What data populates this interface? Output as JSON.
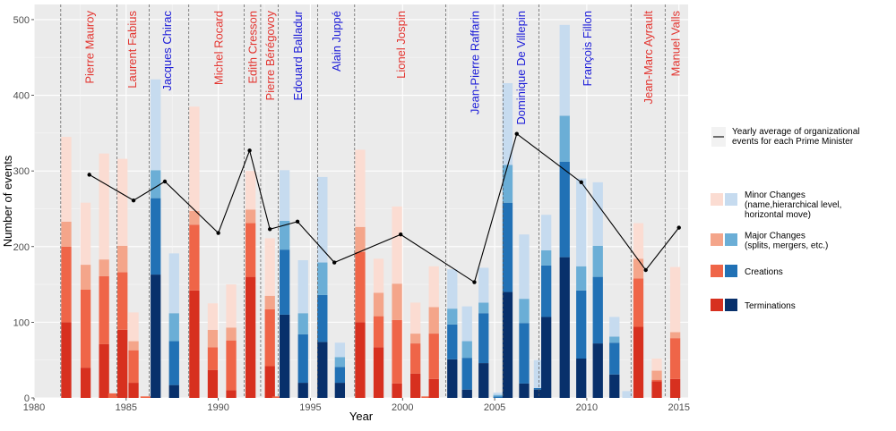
{
  "colors": {
    "left_minor": "#FBDCD2",
    "left_major": "#F4A58A",
    "left_creation": "#EF6548",
    "left_termination": "#D7301F",
    "right_minor": "#C6DBEF",
    "right_major": "#6BAED6",
    "right_creation": "#2171B5",
    "right_termination": "#08306B",
    "pm_red": "#E3342F",
    "pm_blue": "#1B1BD8"
  },
  "chart_data": {
    "type": "bar",
    "stacked": true,
    "xlabel": "Year",
    "ylabel": "Number of events",
    "xlim": [
      1980,
      2015.5
    ],
    "ylim": [
      0,
      520
    ],
    "xticks": [
      1980,
      1985,
      1990,
      1995,
      2000,
      2005,
      2010,
      2015
    ],
    "yticks": [
      0,
      100,
      200,
      300,
      400,
      500
    ],
    "grid": true,
    "stack_order": [
      "Terminations",
      "Creations",
      "Major Changes",
      "Minor Changes"
    ],
    "bars": [
      {
        "x": 1981.75,
        "side": "left",
        "values": [
          100,
          100,
          33,
          112
        ]
      },
      {
        "x": 1982.8,
        "side": "left",
        "values": [
          40,
          103,
          33,
          82
        ]
      },
      {
        "x": 1983.8,
        "side": "left",
        "values": [
          71,
          90,
          22,
          140
        ]
      },
      {
        "x": 1984.3,
        "side": "left",
        "values": [
          0,
          6,
          0,
          0
        ]
      },
      {
        "x": 1984.8,
        "side": "left",
        "values": [
          90,
          76,
          35,
          115
        ]
      },
      {
        "x": 1985.4,
        "side": "left",
        "values": [
          20,
          43,
          12,
          38
        ]
      },
      {
        "x": 1986.05,
        "side": "left",
        "values": [
          0,
          2,
          0,
          0
        ]
      },
      {
        "x": 1986.6,
        "side": "right",
        "values": [
          163,
          101,
          37,
          120
        ]
      },
      {
        "x": 1987.6,
        "side": "right",
        "values": [
          17,
          58,
          37,
          79
        ]
      },
      {
        "x": 1988.7,
        "side": "left",
        "values": [
          142,
          87,
          18,
          138
        ]
      },
      {
        "x": 1989.7,
        "side": "left",
        "values": [
          37,
          30,
          23,
          35
        ]
      },
      {
        "x": 1990.7,
        "side": "left",
        "values": [
          10,
          66,
          17,
          57
        ]
      },
      {
        "x": 1991.75,
        "side": "left",
        "values": [
          160,
          71,
          18,
          51
        ]
      },
      {
        "x": 1992.8,
        "side": "left",
        "values": [
          42,
          75,
          18,
          76
        ]
      },
      {
        "x": 1993.2,
        "side": "left",
        "values": [
          0,
          2,
          0,
          0
        ]
      },
      {
        "x": 1993.6,
        "side": "right",
        "values": [
          110,
          86,
          38,
          67
        ]
      },
      {
        "x": 1994.6,
        "side": "right",
        "values": [
          20,
          64,
          28,
          70
        ]
      },
      {
        "x": 1995.65,
        "side": "right",
        "values": [
          74,
          62,
          43,
          113
        ]
      },
      {
        "x": 1996.6,
        "side": "right",
        "values": [
          20,
          21,
          13,
          19
        ]
      },
      {
        "x": 1997.7,
        "side": "left",
        "values": [
          100,
          93,
          33,
          102
        ]
      },
      {
        "x": 1998.7,
        "side": "left",
        "values": [
          67,
          41,
          31,
          45
        ]
      },
      {
        "x": 1999.7,
        "side": "left",
        "values": [
          19,
          84,
          48,
          102
        ]
      },
      {
        "x": 2000.7,
        "side": "left",
        "values": [
          32,
          40,
          13,
          41
        ]
      },
      {
        "x": 2001.3,
        "side": "left",
        "values": [
          0,
          2,
          0,
          0
        ]
      },
      {
        "x": 2001.7,
        "side": "left",
        "values": [
          25,
          60,
          35,
          54
        ]
      },
      {
        "x": 2002.7,
        "side": "right",
        "values": [
          51,
          46,
          21,
          52
        ]
      },
      {
        "x": 2003.5,
        "side": "right",
        "values": [
          11,
          42,
          22,
          46
        ]
      },
      {
        "x": 2004.4,
        "side": "right",
        "values": [
          46,
          66,
          14,
          46
        ]
      },
      {
        "x": 2005.2,
        "side": "right",
        "values": [
          0,
          2,
          2,
          3
        ]
      },
      {
        "x": 2005.7,
        "side": "right",
        "values": [
          140,
          118,
          50,
          108
        ]
      },
      {
        "x": 2006.6,
        "side": "right",
        "values": [
          19,
          80,
          32,
          85
        ]
      },
      {
        "x": 2007.4,
        "side": "right",
        "values": [
          11,
          2,
          0,
          37
        ]
      },
      {
        "x": 2007.8,
        "side": "right",
        "values": [
          107,
          68,
          20,
          47
        ]
      },
      {
        "x": 2008.8,
        "side": "right",
        "values": [
          186,
          126,
          61,
          120
        ]
      },
      {
        "x": 2009.7,
        "side": "right",
        "values": [
          52,
          90,
          32,
          116
        ]
      },
      {
        "x": 2010.6,
        "side": "right",
        "values": [
          72,
          88,
          41,
          84
        ]
      },
      {
        "x": 2011.5,
        "side": "right",
        "values": [
          31,
          42,
          8,
          26
        ]
      },
      {
        "x": 2012.2,
        "side": "right",
        "values": [
          0,
          0,
          0,
          9
        ]
      },
      {
        "x": 2012.8,
        "side": "left",
        "values": [
          94,
          64,
          26,
          47
        ]
      },
      {
        "x": 2013.8,
        "side": "left",
        "values": [
          22,
          2,
          12,
          16
        ]
      },
      {
        "x": 2014.8,
        "side": "left",
        "values": [
          25,
          54,
          8,
          86
        ]
      }
    ],
    "average_line": {
      "name": "Yearly average of organizational events for each Prime Minister",
      "points": [
        {
          "x": 1983,
          "y": 295
        },
        {
          "x": 1985.4,
          "y": 261
        },
        {
          "x": 1987.1,
          "y": 286
        },
        {
          "x": 1990,
          "y": 218
        },
        {
          "x": 1991.7,
          "y": 327
        },
        {
          "x": 1992.8,
          "y": 223
        },
        {
          "x": 1994.3,
          "y": 233
        },
        {
          "x": 1996.3,
          "y": 179
        },
        {
          "x": 1999.9,
          "y": 216
        },
        {
          "x": 2003.9,
          "y": 153
        },
        {
          "x": 2006.2,
          "y": 349
        },
        {
          "x": 2009.7,
          "y": 285
        },
        {
          "x": 2013.2,
          "y": 169
        },
        {
          "x": 2015,
          "y": 225
        }
      ]
    },
    "boundaries": [
      1981.45,
      1984.5,
      1986.25,
      1988.4,
      1991.4,
      1992.3,
      1993.25,
      1995.4,
      1997.4,
      2002.35,
      2005.45,
      2007.4,
      2012.4,
      2014.25
    ],
    "prime_ministers": [
      {
        "name": "Pierre Mauroy",
        "x": 1983.0,
        "color": "red"
      },
      {
        "name": "Laurent Fabius",
        "x": 1985.3,
        "color": "red"
      },
      {
        "name": "Jacques Chirac",
        "x": 1987.2,
        "color": "blue"
      },
      {
        "name": "Michel Rocard",
        "x": 1990.0,
        "color": "red"
      },
      {
        "name": "Edith Cresson",
        "x": 1991.85,
        "color": "red"
      },
      {
        "name": "Pierre Bérégovoy",
        "x": 1992.8,
        "color": "red"
      },
      {
        "name": "Edouard Balladur",
        "x": 1994.3,
        "color": "blue"
      },
      {
        "name": "Alain Juppé",
        "x": 1996.4,
        "color": "blue"
      },
      {
        "name": "Lionel Jospin",
        "x": 1999.9,
        "color": "red"
      },
      {
        "name": "Jean-Pierre Raffarin",
        "x": 2003.9,
        "color": "blue"
      },
      {
        "name": "Dominique De Villepin",
        "x": 2006.4,
        "color": "blue"
      },
      {
        "name": "François Fillon",
        "x": 2010.0,
        "color": "blue"
      },
      {
        "name": "Jean-Marc Ayrault",
        "x": 2013.3,
        "color": "red"
      },
      {
        "name": "Manuel Valls",
        "x": 2014.8,
        "color": "red"
      }
    ],
    "legend": {
      "line_label": [
        "Yearly average of organizational",
        "events for each Prime Minister"
      ],
      "items": [
        {
          "key": "minor",
          "label": [
            "Minor Changes",
            "(name,hierarchical level,",
            "horizontal move)"
          ]
        },
        {
          "key": "major",
          "label": [
            "Major Changes",
            "(splits, mergers, etc.)"
          ]
        },
        {
          "key": "creation",
          "label": [
            "Creations"
          ]
        },
        {
          "key": "termination",
          "label": [
            "Terminations"
          ]
        }
      ]
    }
  }
}
